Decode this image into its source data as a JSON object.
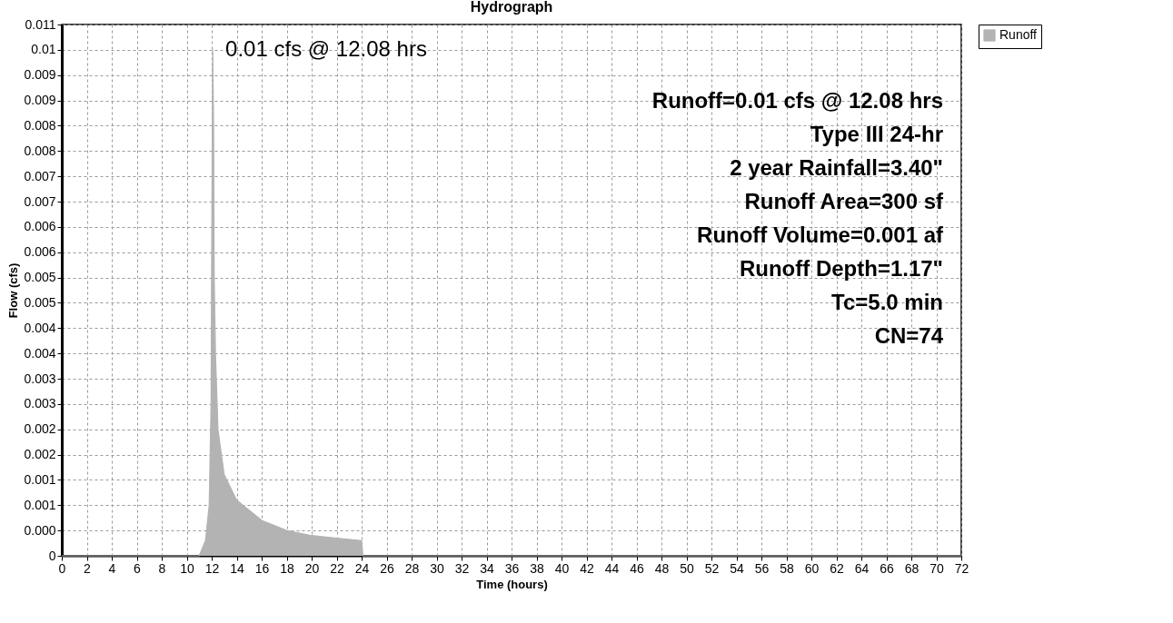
{
  "chart_data": {
    "type": "area",
    "title": "Hydrograph",
    "xlabel": "Time  (hours)",
    "ylabel": "Flow  (cfs)",
    "x": [
      0,
      11,
      11.5,
      11.8,
      11.95,
      12.0,
      12.08,
      12.15,
      12.2,
      12.3,
      12.5,
      13,
      14,
      16,
      18,
      20,
      22,
      24,
      24.1,
      72
    ],
    "series": [
      {
        "name": "Runoff",
        "color": "#b3b3b3",
        "values": [
          0,
          0,
          0.0003,
          0.001,
          0.003,
          0.006,
          0.01,
          0.0085,
          0.0055,
          0.004,
          0.0025,
          0.0016,
          0.0011,
          0.0007,
          0.0005,
          0.0004,
          0.00035,
          0.0003,
          0,
          0
        ]
      }
    ],
    "xlim": [
      0,
      72
    ],
    "xticks": [
      0,
      2,
      4,
      6,
      8,
      10,
      12,
      14,
      16,
      18,
      20,
      22,
      24,
      26,
      28,
      30,
      32,
      34,
      36,
      38,
      40,
      42,
      44,
      46,
      48,
      50,
      52,
      54,
      56,
      58,
      60,
      62,
      64,
      66,
      68,
      70,
      72
    ],
    "ylim": [
      0,
      0.0105
    ],
    "yticks": [
      0,
      {
        "value": 0.0005,
        "label": "0.000"
      },
      0.001,
      {
        "value": 0.0015,
        "label": "0.001"
      },
      0.002,
      {
        "value": 0.0025,
        "label": "0.002"
      },
      0.003,
      {
        "value": 0.0035,
        "label": "0.003"
      },
      0.004,
      {
        "value": 0.0045,
        "label": "0.004"
      },
      0.005,
      {
        "value": 0.0055,
        "label": "0.005"
      },
      0.006,
      {
        "value": 0.0065,
        "label": "0.006"
      },
      0.007,
      {
        "value": 0.0075,
        "label": "0.007"
      },
      0.008,
      {
        "value": 0.0085,
        "label": "0.008"
      },
      0.009,
      {
        "value": 0.0095,
        "label": "0.009"
      },
      0.01,
      {
        "value": 0.0105,
        "label": "0.011"
      }
    ],
    "grid": true,
    "legend": "top right",
    "annotations": [
      {
        "text": "0.01 cfs @ 12.08 hrs",
        "x": 12.08,
        "y": 0.01
      },
      "Runoff=0.01 cfs @ 12.08 hrs",
      "Type III 24-hr",
      "2 year Rainfall=3.40\"",
      "Runoff Area=300 sf",
      "Runoff Volume=0.001 af",
      "Runoff Depth=1.17\"",
      "Tc=5.0 min",
      "CN=74"
    ]
  }
}
